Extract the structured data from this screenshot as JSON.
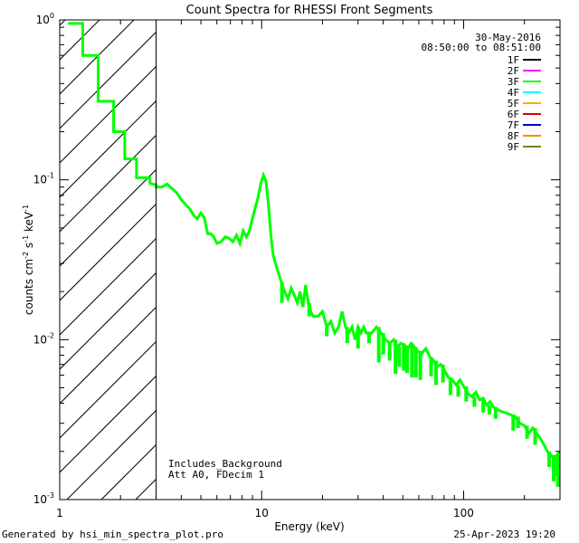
{
  "chart_data": {
    "type": "line",
    "title": "Count Spectra for RHESSI Front Segments",
    "xlabel": "Energy (keV)",
    "ylabel_parts": {
      "a": "counts cm",
      "b": "-2",
      "c": " s",
      "d": "-1",
      "e": " keV",
      "f": "-1"
    },
    "x_scale": "log",
    "y_scale": "log",
    "xlim": [
      1,
      300
    ],
    "ylim": [
      0.001,
      1
    ],
    "x_ticks": [
      {
        "value": 1,
        "label": "1"
      },
      {
        "value": 10,
        "label": "10"
      },
      {
        "value": 100,
        "label": "100"
      }
    ],
    "y_ticks": [
      {
        "value": 1,
        "base": "10",
        "exp": "0"
      },
      {
        "value": 0.1,
        "base": "10",
        "exp": "-1"
      },
      {
        "value": 0.01,
        "base": "10",
        "exp": "-2"
      },
      {
        "value": 0.001,
        "base": "10",
        "exp": "-3"
      }
    ],
    "date": "30-May-2016",
    "time_range": "08:50:00 to 08:51:00",
    "legend": [
      {
        "label": "1F",
        "color": "#000000"
      },
      {
        "label": "2F",
        "color": "#ff00ff"
      },
      {
        "label": "3F",
        "color": "#00ff00"
      },
      {
        "label": "4F",
        "color": "#00ffff"
      },
      {
        "label": "5F",
        "color": "#ffaa00"
      },
      {
        "label": "6F",
        "color": "#dd0000"
      },
      {
        "label": "7F",
        "color": "#0000cc"
      },
      {
        "label": "8F",
        "color": "#ff8800"
      },
      {
        "label": "9F",
        "color": "#808000"
      }
    ],
    "annotations": [
      "Includes_Background",
      "Att A0, FDecim 1"
    ],
    "hatch_region_x": [
      1,
      3
    ],
    "series": [
      {
        "color": "#00ff00",
        "points": [
          [
            1.1,
            0.95
          ],
          [
            1.3,
            0.95
          ],
          [
            1.3,
            0.6
          ],
          [
            1.55,
            0.6
          ],
          [
            1.55,
            0.31
          ],
          [
            1.85,
            0.31
          ],
          [
            1.85,
            0.2
          ],
          [
            2.1,
            0.2
          ],
          [
            2.1,
            0.135
          ],
          [
            2.4,
            0.135
          ],
          [
            2.4,
            0.103
          ],
          [
            2.8,
            0.103
          ],
          [
            2.8,
            0.095
          ],
          [
            3.0,
            0.093
          ],
          [
            3.0,
            0.09
          ],
          [
            3.2,
            0.09
          ],
          [
            3.4,
            0.094
          ],
          [
            3.6,
            0.088
          ],
          [
            3.8,
            0.083
          ],
          [
            4.0,
            0.075
          ],
          [
            4.2,
            0.07
          ],
          [
            4.4,
            0.066
          ],
          [
            4.6,
            0.06
          ],
          [
            4.8,
            0.057
          ],
          [
            5.0,
            0.062
          ],
          [
            5.2,
            0.058
          ],
          [
            5.4,
            0.046
          ],
          [
            5.6,
            0.046
          ],
          [
            5.8,
            0.044
          ],
          [
            6.0,
            0.04
          ],
          [
            6.3,
            0.041
          ],
          [
            6.6,
            0.044
          ],
          [
            6.9,
            0.043
          ],
          [
            7.2,
            0.041
          ],
          [
            7.5,
            0.045
          ],
          [
            7.8,
            0.04
          ],
          [
            8.1,
            0.048
          ],
          [
            8.4,
            0.044
          ],
          [
            8.7,
            0.048
          ],
          [
            9.0,
            0.057
          ],
          [
            9.3,
            0.067
          ],
          [
            9.6,
            0.078
          ],
          [
            9.9,
            0.095
          ],
          [
            10.2,
            0.107
          ],
          [
            10.5,
            0.098
          ],
          [
            10.8,
            0.07
          ],
          [
            11.1,
            0.045
          ],
          [
            11.4,
            0.034
          ],
          [
            11.7,
            0.03
          ],
          [
            12.0,
            0.027
          ],
          [
            12.5,
            0.023
          ],
          [
            13.0,
            0.02
          ],
          [
            13.5,
            0.018
          ],
          [
            14.0,
            0.021
          ],
          [
            14.5,
            0.019
          ],
          [
            15.0,
            0.017
          ],
          [
            15.5,
            0.02
          ],
          [
            16.0,
            0.016
          ],
          [
            16.5,
            0.022
          ],
          [
            17.0,
            0.017
          ],
          [
            17.5,
            0.015
          ],
          [
            18.0,
            0.014
          ],
          [
            19.0,
            0.014
          ],
          [
            20.0,
            0.015
          ],
          [
            21.0,
            0.012
          ],
          [
            22.0,
            0.013
          ],
          [
            23.0,
            0.011
          ],
          [
            24.0,
            0.012
          ],
          [
            25.0,
            0.015
          ],
          [
            26.0,
            0.012
          ],
          [
            27.0,
            0.011
          ],
          [
            28.0,
            0.012
          ],
          [
            29.0,
            0.01
          ],
          [
            30.0,
            0.012
          ],
          [
            31.0,
            0.011
          ],
          [
            32.0,
            0.012
          ],
          [
            33.0,
            0.011
          ],
          [
            35.0,
            0.011
          ],
          [
            37.0,
            0.012
          ],
          [
            39.0,
            0.011
          ],
          [
            41.0,
            0.01
          ],
          [
            43.0,
            0.0095
          ],
          [
            45.0,
            0.01
          ],
          [
            47.0,
            0.009
          ],
          [
            49.0,
            0.0095
          ],
          [
            51.0,
            0.0092
          ],
          [
            53.0,
            0.0088
          ],
          [
            55.0,
            0.0095
          ],
          [
            57.0,
            0.009
          ],
          [
            59.0,
            0.0085
          ],
          [
            62.0,
            0.0082
          ],
          [
            65.0,
            0.0088
          ],
          [
            68.0,
            0.0078
          ],
          [
            71.0,
            0.0074
          ],
          [
            74.0,
            0.0068
          ],
          [
            77.0,
            0.007
          ],
          [
            80.0,
            0.0065
          ],
          [
            84.0,
            0.0058
          ],
          [
            88.0,
            0.0056
          ],
          [
            92.0,
            0.0052
          ],
          [
            96.0,
            0.0056
          ],
          [
            100.0,
            0.0051
          ],
          [
            105.0,
            0.0046
          ],
          [
            110.0,
            0.0044
          ],
          [
            115.0,
            0.0047
          ],
          [
            120.0,
            0.0042
          ],
          [
            125.0,
            0.0043
          ],
          [
            130.0,
            0.0039
          ],
          [
            135.0,
            0.0041
          ],
          [
            140.0,
            0.0038
          ],
          [
            150.0,
            0.0036
          ],
          [
            160.0,
            0.0035
          ],
          [
            170.0,
            0.0034
          ],
          [
            180.0,
            0.0033
          ],
          [
            190.0,
            0.003
          ],
          [
            200.0,
            0.0029
          ],
          [
            210.0,
            0.0026
          ],
          [
            220.0,
            0.0028
          ],
          [
            230.0,
            0.0026
          ],
          [
            240.0,
            0.0024
          ],
          [
            250.0,
            0.0022
          ],
          [
            260.0,
            0.002
          ],
          [
            270.0,
            0.0019
          ],
          [
            280.0,
            0.0018
          ],
          [
            290.0,
            0.0019
          ],
          [
            300.0,
            0.002
          ]
        ],
        "dips": [
          [
            12.6,
            0.017
          ],
          [
            17.2,
            0.014
          ],
          [
            21.0,
            0.0105
          ],
          [
            26.5,
            0.0095
          ],
          [
            30.0,
            0.0088
          ],
          [
            34.0,
            0.0095
          ],
          [
            38.0,
            0.0072
          ],
          [
            40.0,
            0.0081
          ],
          [
            43.0,
            0.0074
          ],
          [
            46.0,
            0.0061
          ],
          [
            48.0,
            0.0068
          ],
          [
            50.5,
            0.0064
          ],
          [
            52.5,
            0.0062
          ],
          [
            55.5,
            0.0058
          ],
          [
            58.0,
            0.0058
          ],
          [
            61.0,
            0.0056
          ],
          [
            69.0,
            0.0059
          ],
          [
            73.0,
            0.0052
          ],
          [
            79.0,
            0.0054
          ],
          [
            86.0,
            0.0045
          ],
          [
            94.0,
            0.0044
          ],
          [
            103.0,
            0.0041
          ],
          [
            113.0,
            0.0038
          ],
          [
            125.0,
            0.0035
          ],
          [
            134.0,
            0.0034
          ],
          [
            144.0,
            0.0032
          ],
          [
            176.0,
            0.0027
          ],
          [
            186.0,
            0.0028
          ],
          [
            206.0,
            0.0024
          ],
          [
            226.0,
            0.0022
          ],
          [
            265.0,
            0.0016
          ],
          [
            279.0,
            0.0013
          ],
          [
            286.0,
            0.0014
          ],
          [
            293.0,
            0.0012
          ]
        ]
      }
    ]
  },
  "footer": {
    "left": "Generated by hsi_min_spectra_plot.pro",
    "right": "25-Apr-2023 19:20"
  }
}
